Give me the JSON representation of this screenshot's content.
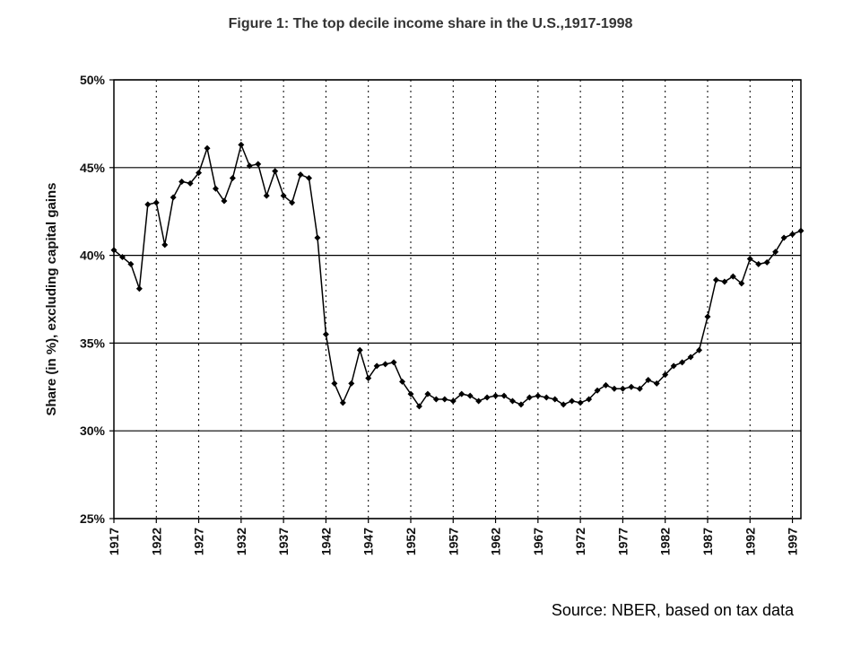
{
  "chart_data": {
    "type": "line",
    "title": "Figure 1: The top decile income share in the U.S.,1917-1998",
    "ylabel": "Share (in %), excluding capital gains",
    "xlabel": "",
    "ylim": [
      25,
      50
    ],
    "xlim": [
      1917,
      1998
    ],
    "y_ticks": [
      "25%",
      "30%",
      "35%",
      "40%",
      "45%",
      "50%"
    ],
    "x_ticks": [
      "1917",
      "1922",
      "1927",
      "1932",
      "1937",
      "1942",
      "1947",
      "1952",
      "1957",
      "1962",
      "1967",
      "1972",
      "1977",
      "1982",
      "1987",
      "1992",
      "1997"
    ],
    "grid": {
      "horizontal": "solid",
      "vertical": "dotted"
    },
    "legend": "none",
    "line_color": "#000000",
    "series": [
      {
        "x": [
          1917,
          1918,
          1919,
          1920,
          1921,
          1922,
          1923,
          1924,
          1925,
          1926,
          1927,
          1928,
          1929,
          1930,
          1931,
          1932,
          1933,
          1934,
          1935,
          1936,
          1937,
          1938,
          1939,
          1940,
          1941,
          1942,
          1943,
          1944,
          1945,
          1946,
          1947,
          1948,
          1949,
          1950,
          1951,
          1952,
          1953,
          1954,
          1955,
          1956,
          1957,
          1958,
          1959,
          1960,
          1961,
          1962,
          1963,
          1964,
          1965,
          1966,
          1967,
          1968,
          1969,
          1970,
          1971,
          1972,
          1973,
          1974,
          1975,
          1976,
          1977,
          1978,
          1979,
          1980,
          1981,
          1982,
          1983,
          1984,
          1985,
          1986,
          1987,
          1988,
          1989,
          1990,
          1991,
          1992,
          1993,
          1994,
          1995,
          1996,
          1997,
          1998
        ],
        "values": [
          40.3,
          39.9,
          39.5,
          38.1,
          42.9,
          43.0,
          40.6,
          43.3,
          44.2,
          44.1,
          44.7,
          46.1,
          43.8,
          43.1,
          44.4,
          46.3,
          45.1,
          45.2,
          43.4,
          44.8,
          43.4,
          43.0,
          44.6,
          44.4,
          41.0,
          35.5,
          32.7,
          31.6,
          32.7,
          34.6,
          33.0,
          33.7,
          33.8,
          33.9,
          32.8,
          32.1,
          31.4,
          32.1,
          31.8,
          31.8,
          31.7,
          32.1,
          32.0,
          31.7,
          31.9,
          32.0,
          32.0,
          31.7,
          31.5,
          31.9,
          32.0,
          31.9,
          31.8,
          31.5,
          31.7,
          31.6,
          31.8,
          32.3,
          32.6,
          32.4,
          32.4,
          32.5,
          32.4,
          32.9,
          32.7,
          33.2,
          33.7,
          33.9,
          34.2,
          34.6,
          36.5,
          38.6,
          38.5,
          38.8,
          38.4,
          39.8,
          39.5,
          39.6,
          40.2,
          41.0,
          41.2,
          41.4
        ]
      }
    ]
  },
  "footer": {
    "source": "Source: NBER, based on tax data"
  }
}
